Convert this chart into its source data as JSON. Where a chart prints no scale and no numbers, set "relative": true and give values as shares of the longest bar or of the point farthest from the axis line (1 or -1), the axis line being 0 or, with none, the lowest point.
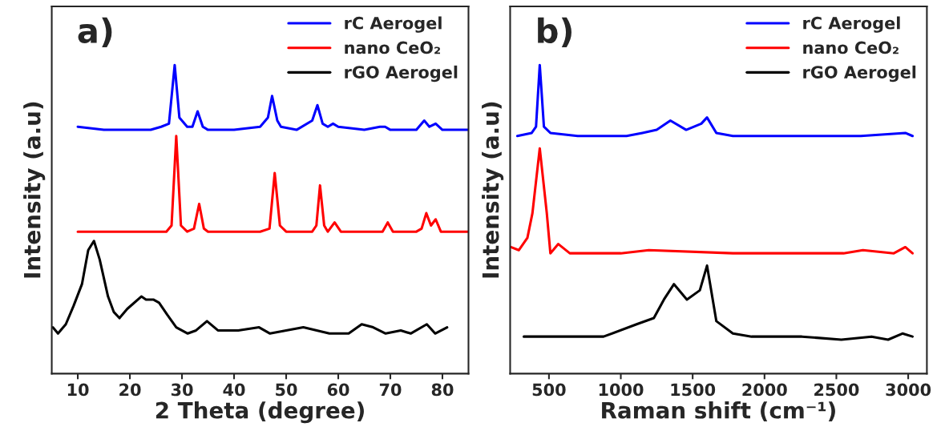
{
  "chart_data": [
    {
      "type": "line",
      "relative": true,
      "xlabel": "2 Theta (degree)",
      "ylabel": "Intensity (a.u)",
      "xlim": [
        5,
        85
      ],
      "xticks": [
        10,
        20,
        30,
        40,
        50,
        60,
        70,
        80
      ],
      "tick_labels": "x",
      "legend": "top right",
      "annotations": [
        "a)"
      ],
      "series": [
        {
          "name": "rC Aerogel",
          "color": "#0000ff",
          "x": [
            10,
            15,
            20,
            24,
            26,
            27.5,
            28.6,
            29.5,
            31,
            32,
            33,
            34,
            35,
            40,
            45,
            46.5,
            47.3,
            48.3,
            49,
            52,
            55,
            56,
            57,
            58,
            59,
            60,
            65,
            68,
            69,
            70,
            75,
            76.5,
            77.5,
            78.7,
            80,
            85
          ],
          "values": [
            0.8,
            0.79,
            0.79,
            0.79,
            0.8,
            0.81,
            1.0,
            0.83,
            0.8,
            0.8,
            0.85,
            0.8,
            0.79,
            0.79,
            0.8,
            0.83,
            0.9,
            0.82,
            0.8,
            0.79,
            0.82,
            0.87,
            0.81,
            0.8,
            0.81,
            0.8,
            0.79,
            0.8,
            0.8,
            0.79,
            0.79,
            0.82,
            0.8,
            0.81,
            0.79,
            0.79
          ]
        },
        {
          "name": "nano CeO₂",
          "color": "#ff0000",
          "x": [
            10,
            11,
            12,
            20,
            27,
            28,
            28.9,
            29.8,
            31,
            32.3,
            33.3,
            34.2,
            35,
            40,
            45,
            46.8,
            47.8,
            48.8,
            50,
            55,
            55.8,
            56.5,
            57.3,
            58,
            59.3,
            60.5,
            65,
            68.5,
            69.5,
            70.5,
            75,
            76,
            76.9,
            77.8,
            78.7,
            79.7,
            85
          ],
          "values": [
            0.46,
            0.46,
            0.46,
            0.46,
            0.46,
            0.48,
            0.77,
            0.48,
            0.46,
            0.47,
            0.55,
            0.47,
            0.46,
            0.46,
            0.46,
            0.47,
            0.65,
            0.48,
            0.46,
            0.46,
            0.48,
            0.61,
            0.48,
            0.46,
            0.49,
            0.46,
            0.46,
            0.46,
            0.49,
            0.46,
            0.46,
            0.47,
            0.52,
            0.48,
            0.5,
            0.46,
            0.46
          ]
        },
        {
          "name": "rGO Aerogel",
          "color": "#000000",
          "x": [
            5.2,
            6.2,
            7.7,
            9.2,
            10.8,
            12.0,
            13.1,
            14.2,
            15.8,
            16.9,
            18.0,
            19.5,
            22.2,
            23.1,
            24.5,
            25.6,
            27.2,
            28.9,
            31.1,
            32.7,
            34.8,
            36.9,
            40.8,
            44.8,
            46.9,
            53.3,
            58.3,
            62.0,
            64.5,
            66.7,
            69.1,
            72.0,
            73.9,
            77.0,
            78.6,
            80.9
          ],
          "values": [
            0.15,
            0.13,
            0.16,
            0.22,
            0.29,
            0.4,
            0.43,
            0.37,
            0.25,
            0.2,
            0.18,
            0.21,
            0.25,
            0.24,
            0.24,
            0.23,
            0.19,
            0.15,
            0.13,
            0.14,
            0.17,
            0.14,
            0.14,
            0.15,
            0.13,
            0.15,
            0.13,
            0.13,
            0.16,
            0.15,
            0.13,
            0.14,
            0.13,
            0.16,
            0.13,
            0.15
          ]
        }
      ]
    },
    {
      "type": "line",
      "relative": true,
      "xlabel": "Raman shift (cm⁻¹)",
      "ylabel": "Intensity (a.u)",
      "xlim": [
        230,
        3130
      ],
      "xticks": [
        500,
        1000,
        1500,
        2000,
        2500,
        3000
      ],
      "tick_labels": "x",
      "legend": "top right",
      "annotations": [
        "b)"
      ],
      "series": [
        {
          "name": "rC Aerogel",
          "color": "#0000ff",
          "x": [
            280,
            380,
            410,
            436,
            465,
            510,
            700,
            1040,
            1150,
            1250,
            1345,
            1455,
            1560,
            1600,
            1665,
            1780,
            2160,
            2490,
            2670,
            2980,
            3030
          ],
          "values": [
            0.77,
            0.78,
            0.8,
            1.0,
            0.8,
            0.78,
            0.77,
            0.77,
            0.78,
            0.79,
            0.82,
            0.79,
            0.81,
            0.83,
            0.78,
            0.77,
            0.77,
            0.77,
            0.77,
            0.78,
            0.77
          ]
        },
        {
          "name": "nano CeO₂",
          "color": "#ff0000",
          "x": [
            235,
            290,
            350,
            385,
            436,
            485,
            510,
            565,
            645,
            1000,
            1195,
            1780,
            2320,
            2550,
            2685,
            2900,
            2980,
            3030
          ],
          "values": [
            0.41,
            0.4,
            0.44,
            0.52,
            0.73,
            0.52,
            0.39,
            0.42,
            0.39,
            0.39,
            0.4,
            0.39,
            0.39,
            0.39,
            0.4,
            0.39,
            0.41,
            0.39
          ]
        },
        {
          "name": "rGO Aerogel",
          "color": "#000000",
          "x": [
            325,
            880,
            1110,
            1230,
            1300,
            1370,
            1460,
            1550,
            1600,
            1665,
            1780,
            1910,
            2260,
            2535,
            2745,
            2860,
            2960,
            3030
          ],
          "values": [
            0.12,
            0.12,
            0.16,
            0.18,
            0.24,
            0.29,
            0.24,
            0.27,
            0.35,
            0.17,
            0.13,
            0.12,
            0.12,
            0.11,
            0.12,
            0.11,
            0.13,
            0.12
          ]
        }
      ]
    }
  ]
}
